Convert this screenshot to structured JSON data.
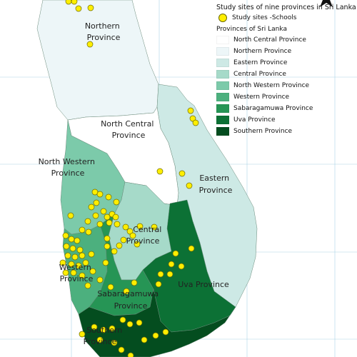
{
  "legend": {
    "title": "Study sites of nine provinces in Sri Lanka",
    "sites_label": "Study sites -Schools",
    "provinces_header": "Provinces of Sri Lanka",
    "items": [
      {
        "label": "North Central Province",
        "color": "#ffffff"
      },
      {
        "label": "Northern Province",
        "color": "#edf6f8"
      },
      {
        "label": "Eastern Province",
        "color": "#cde9e5"
      },
      {
        "label": "Central Province",
        "color": "#a6dac9"
      },
      {
        "label": "North Western Province",
        "color": "#7ccaaa"
      },
      {
        "label": "Western Province",
        "color": "#4cb07e"
      },
      {
        "label": "Sabaragamuwa Province",
        "color": "#269555"
      },
      {
        "label": "Uva Province",
        "color": "#0c7135"
      },
      {
        "label": "Southern Province",
        "color": "#044d1f"
      }
    ]
  },
  "map_labels": {
    "northern": [
      "Northern",
      "Province"
    ],
    "north_central": [
      "North Central",
      "Province"
    ],
    "north_western": [
      "North Western",
      "Province"
    ],
    "eastern": [
      "Eastern",
      "Province"
    ],
    "central": [
      "Central",
      "Province"
    ],
    "western": [
      "Western",
      "Province"
    ],
    "sabaragamuwa": [
      "Sabaragamuwa",
      "Province"
    ],
    "uva": [
      "Uva Province"
    ],
    "southern": [
      "Southern",
      "Province"
    ]
  },
  "colors": {
    "site_fill": "#ffee00",
    "site_stroke": "#6b6b00",
    "grid": "#a9d3e6",
    "coast": "#6a8a7a"
  }
}
